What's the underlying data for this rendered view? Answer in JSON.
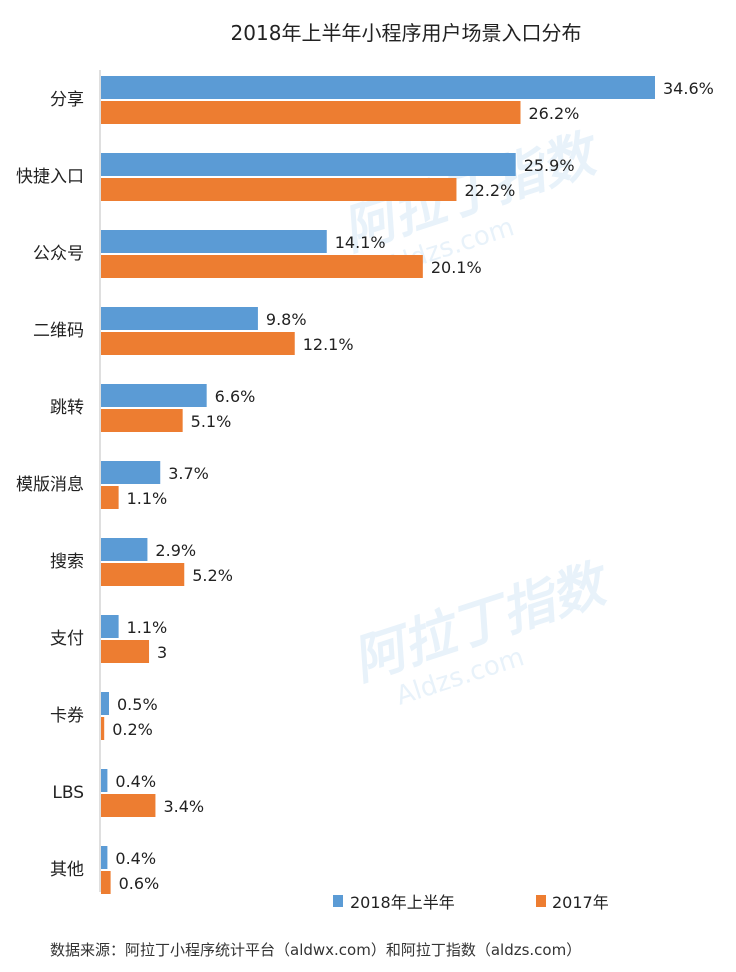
{
  "chart_data": {
    "type": "bar",
    "orientation": "horizontal",
    "title": "2018年上半年小程序用户场景入口分布",
    "categories": [
      "分享",
      "快捷入口",
      "公众号",
      "二维码",
      "跳转",
      "模版消息",
      "搜索",
      "支付",
      "卡券",
      "LBS",
      "其他"
    ],
    "series": [
      {
        "name": "2018年上半年",
        "color": "#5b9bd5",
        "values": [
          34.6,
          25.9,
          14.1,
          9.8,
          6.6,
          3.7,
          2.9,
          1.1,
          0.5,
          0.4,
          0.4
        ],
        "labels": [
          "34.6%",
          "25.9%",
          "14.1%",
          "9.8%",
          "6.6%",
          "3.7%",
          "2.9%",
          "1.1%",
          "0.5%",
          "0.4%",
          "0.4%"
        ]
      },
      {
        "name": "2017年",
        "color": "#ed7d31",
        "values": [
          26.2,
          22.2,
          20.1,
          12.1,
          5.1,
          1.1,
          5.2,
          3.0,
          0.2,
          3.4,
          0.6
        ],
        "labels": [
          "26.2%",
          "22.2%",
          "20.1%",
          "12.1%",
          "5.1%",
          "1.1%",
          "5.2%",
          "3",
          "0.2%",
          "3.4%",
          "0.6%"
        ]
      }
    ],
    "xlim": [
      0,
      35
    ],
    "grid": false,
    "legend_position": "bottom-right"
  },
  "watermark": {
    "text": "阿拉丁指数",
    "subtext": "Aldzs.com"
  },
  "source": "数据来源：阿拉丁小程序统计平台（aldwx.com）和阿拉丁指数（aldzs.com）"
}
